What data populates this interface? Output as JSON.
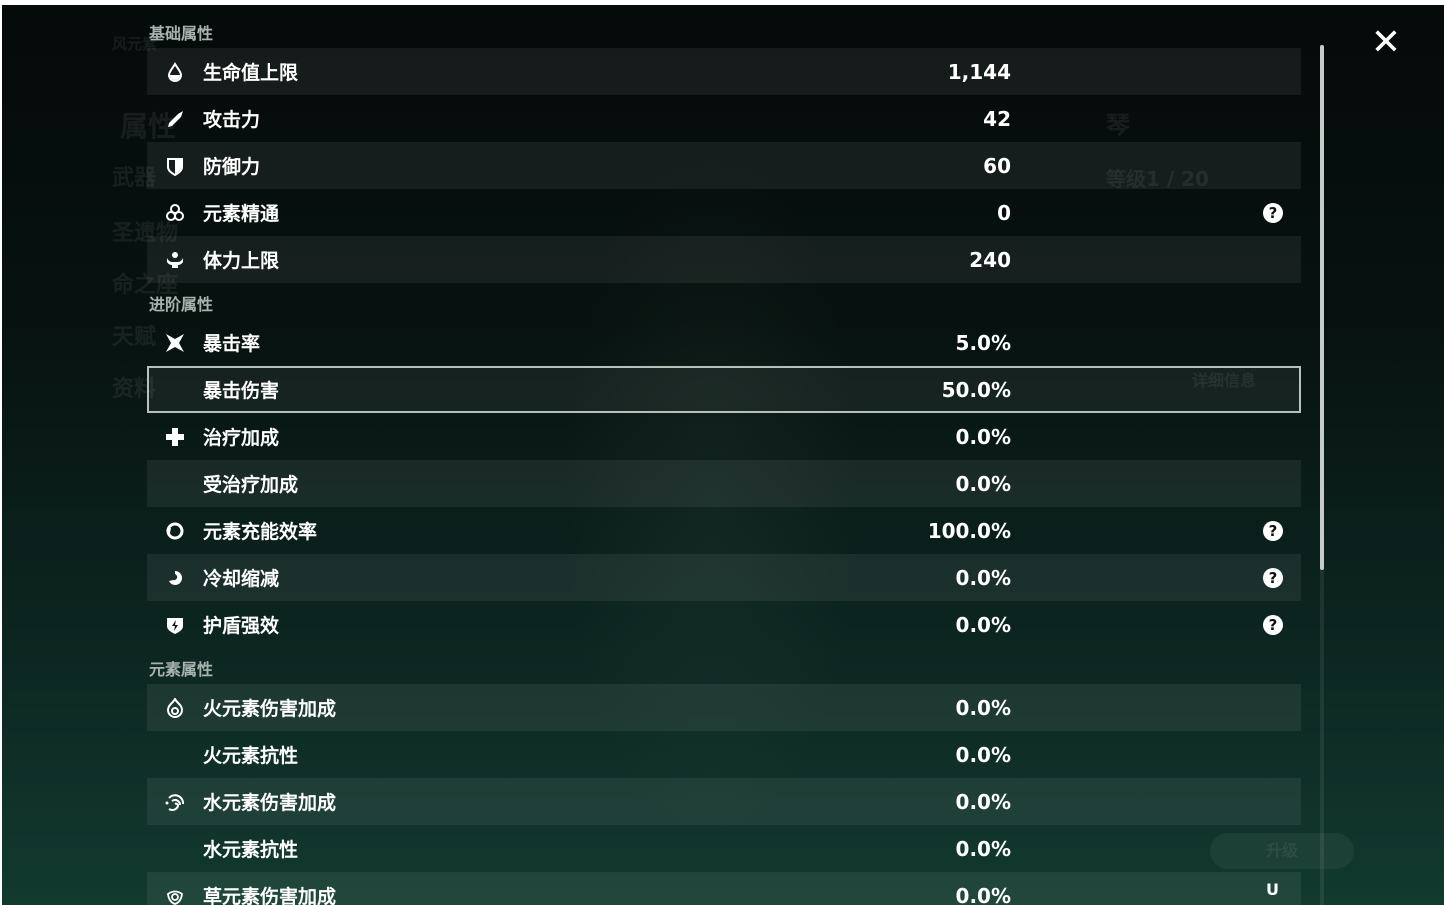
{
  "background": {
    "nav": [
      "属性",
      "武器",
      "圣遗物",
      "命之座",
      "天赋",
      "资料"
    ],
    "element_title": "风元素",
    "character_name": "琴",
    "level": "等级1 / 20",
    "detail_button": "详细信息",
    "upgrade_button": "升级"
  },
  "sections": [
    {
      "title": "基础属性",
      "rows": [
        {
          "icon": "hp-drop-icon",
          "label": "生命值上限",
          "value": "1,144"
        },
        {
          "icon": "sword-icon",
          "label": "攻击力",
          "value": "42"
        },
        {
          "icon": "shield-icon",
          "label": "防御力",
          "value": "60"
        },
        {
          "icon": "elemental-mastery-icon",
          "label": "元素精通",
          "value": "0",
          "help": true
        },
        {
          "icon": "stamina-icon",
          "label": "体力上限",
          "value": "240"
        }
      ]
    },
    {
      "title": "进阶属性",
      "rows": [
        {
          "icon": "crit-star-icon",
          "label": "暴击率",
          "value": "5.0%"
        },
        {
          "icon": "",
          "label": "暴击伤害",
          "value": "50.0%",
          "selected": true
        },
        {
          "icon": "healing-cross-icon",
          "label": "治疗加成",
          "value": "0.0%"
        },
        {
          "icon": "",
          "label": "受治疗加成",
          "value": "0.0%"
        },
        {
          "icon": "energy-recharge-icon",
          "label": "元素充能效率",
          "value": "100.0%",
          "help": true
        },
        {
          "icon": "cooldown-icon",
          "label": "冷却缩减",
          "value": "0.0%",
          "help": true
        },
        {
          "icon": "shield-strength-icon",
          "label": "护盾强效",
          "value": "0.0%",
          "help": true
        }
      ]
    },
    {
      "title": "元素属性",
      "rows": [
        {
          "icon": "pyro-icon",
          "label": "火元素伤害加成",
          "value": "0.0%"
        },
        {
          "icon": "",
          "label": "火元素抗性",
          "value": "0.0%"
        },
        {
          "icon": "hydro-icon",
          "label": "水元素伤害加成",
          "value": "0.0%"
        },
        {
          "icon": "",
          "label": "水元素抗性",
          "value": "0.0%"
        },
        {
          "icon": "dendro-icon",
          "label": "草元素伤害加成",
          "value": "0.0%"
        }
      ]
    }
  ],
  "help_glyph": "?",
  "close_glyph": "✕",
  "uid": "U"
}
